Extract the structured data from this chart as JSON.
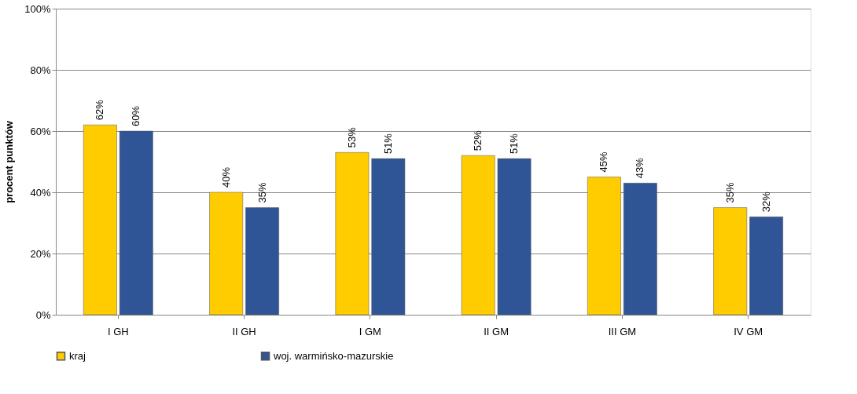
{
  "chart_data": {
    "type": "bar",
    "ylabel": "procent punktów",
    "categories": [
      "I GH",
      "II GH",
      "I GM",
      "II GM",
      "III GM",
      "IV GM"
    ],
    "series": [
      {
        "name": "kraj",
        "color": "#ffcc00",
        "values": [
          62,
          40,
          53,
          52,
          45,
          35
        ],
        "value_labels": [
          "62%",
          "40%",
          "53%",
          "52%",
          "45%",
          "35%"
        ]
      },
      {
        "name": "woj. warmińsko-mazurskie",
        "color": "#2f5597",
        "values": [
          60,
          35,
          51,
          51,
          43,
          32
        ],
        "value_labels": [
          "60%",
          "35%",
          "51%",
          "51%",
          "43%",
          "32%"
        ]
      }
    ],
    "ylim": [
      0,
      100
    ],
    "yticks": [
      {
        "value": 0,
        "label": "0%"
      },
      {
        "value": 20,
        "label": "20%"
      },
      {
        "value": 40,
        "label": "40%"
      },
      {
        "value": 60,
        "label": "60%"
      },
      {
        "value": 80,
        "label": "80%"
      },
      {
        "value": 100,
        "label": "100%"
      }
    ],
    "grid": "y",
    "legend": "bottom"
  }
}
